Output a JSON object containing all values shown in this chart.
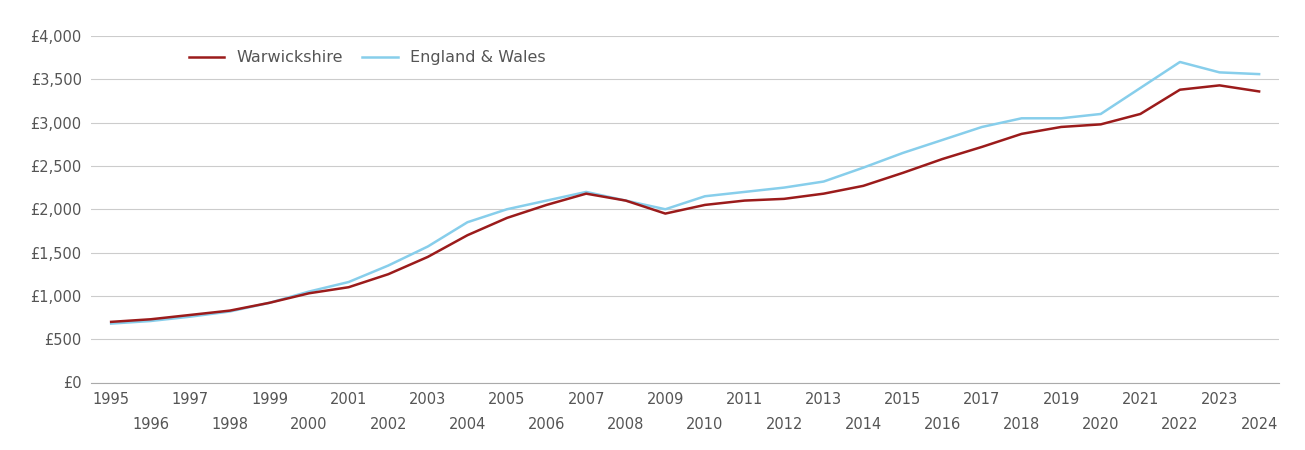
{
  "years": [
    1995,
    1996,
    1997,
    1998,
    1999,
    2000,
    2001,
    2002,
    2003,
    2004,
    2005,
    2006,
    2007,
    2008,
    2009,
    2010,
    2011,
    2012,
    2013,
    2014,
    2015,
    2016,
    2017,
    2018,
    2019,
    2020,
    2021,
    2022,
    2023,
    2024
  ],
  "warwickshire": [
    700,
    730,
    780,
    830,
    920,
    1030,
    1100,
    1250,
    1450,
    1700,
    1900,
    2050,
    2180,
    2100,
    1950,
    2050,
    2100,
    2120,
    2180,
    2270,
    2420,
    2580,
    2720,
    2870,
    2950,
    2980,
    3100,
    3380,
    3430,
    3360
  ],
  "england_wales": [
    680,
    710,
    760,
    820,
    920,
    1050,
    1160,
    1350,
    1570,
    1850,
    2000,
    2100,
    2200,
    2100,
    2000,
    2150,
    2200,
    2250,
    2320,
    2480,
    2650,
    2800,
    2950,
    3050,
    3050,
    3100,
    3400,
    3700,
    3580,
    3560
  ],
  "warwickshire_color": "#9B1B1B",
  "england_wales_color": "#87CEEB",
  "warwickshire_label": "Warwickshire",
  "england_wales_label": "England & Wales",
  "ylim": [
    0,
    4000
  ],
  "yticks": [
    0,
    500,
    1000,
    1500,
    2000,
    2500,
    3000,
    3500,
    4000
  ],
  "background_color": "#ffffff",
  "grid_color": "#cccccc",
  "line_width": 1.8,
  "tick_label_color": "#555555",
  "legend_fontsize": 11.5,
  "tick_fontsize": 10.5
}
